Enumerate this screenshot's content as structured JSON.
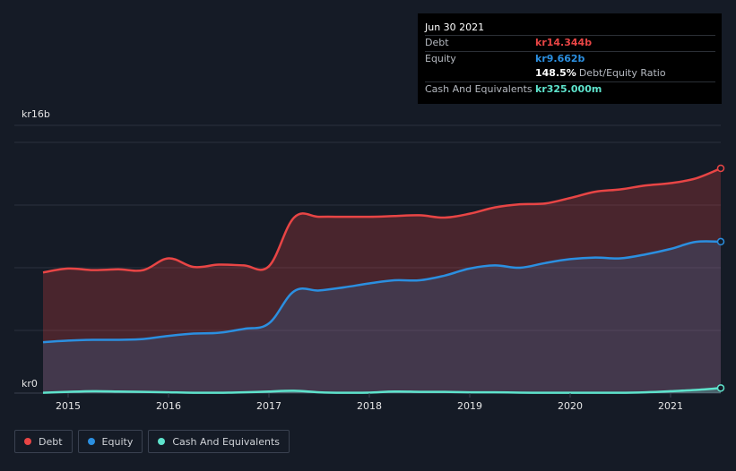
{
  "tooltip": {
    "date": "Jun 30 2021",
    "debt_label": "Debt",
    "debt_value": "kr14.344b",
    "equity_label": "Equity",
    "equity_value": "kr9.662b",
    "ratio_value": "148.5%",
    "ratio_label": "Debt/Equity Ratio",
    "cash_label": "Cash And Equivalents",
    "cash_value": "kr325.000m"
  },
  "legend": [
    {
      "label": "Debt",
      "color": "#e84545"
    },
    {
      "label": "Equity",
      "color": "#2b8fe0"
    },
    {
      "label": "Cash And Equivalents",
      "color": "#5ee3cc"
    }
  ],
  "chart_data": {
    "type": "area",
    "title": "",
    "y_label_top": "kr16b",
    "y_label_bottom": "kr0",
    "ylim": [
      0,
      16
    ],
    "xlim": [
      2014.75,
      2021.5
    ],
    "x_ticks": [
      "2015",
      "2016",
      "2017",
      "2018",
      "2019",
      "2020",
      "2021"
    ],
    "x_tick_values": [
      2015,
      2016,
      2017,
      2018,
      2019,
      2020,
      2021
    ],
    "y_unit": "kr billions",
    "series": [
      {
        "name": "Debt",
        "color": "#e84545",
        "points": [
          [
            2014.75,
            7.7
          ],
          [
            2015.0,
            7.95
          ],
          [
            2015.25,
            7.85
          ],
          [
            2015.5,
            7.9
          ],
          [
            2015.75,
            7.85
          ],
          [
            2016.0,
            8.6
          ],
          [
            2016.25,
            8.05
          ],
          [
            2016.5,
            8.2
          ],
          [
            2016.75,
            8.15
          ],
          [
            2017.0,
            8.1
          ],
          [
            2017.25,
            11.2
          ],
          [
            2017.5,
            11.25
          ],
          [
            2017.75,
            11.25
          ],
          [
            2018.0,
            11.25
          ],
          [
            2018.25,
            11.3
          ],
          [
            2018.5,
            11.35
          ],
          [
            2018.75,
            11.2
          ],
          [
            2019.0,
            11.45
          ],
          [
            2019.25,
            11.85
          ],
          [
            2019.5,
            12.05
          ],
          [
            2019.75,
            12.1
          ],
          [
            2020.0,
            12.45
          ],
          [
            2020.25,
            12.85
          ],
          [
            2020.5,
            13.0
          ],
          [
            2020.75,
            13.25
          ],
          [
            2021.0,
            13.4
          ],
          [
            2021.25,
            13.7
          ],
          [
            2021.5,
            14.344
          ]
        ]
      },
      {
        "name": "Equity",
        "color": "#2b8fe0",
        "points": [
          [
            2014.75,
            3.25
          ],
          [
            2015.0,
            3.35
          ],
          [
            2015.25,
            3.4
          ],
          [
            2015.5,
            3.4
          ],
          [
            2015.75,
            3.45
          ],
          [
            2016.0,
            3.65
          ],
          [
            2016.25,
            3.8
          ],
          [
            2016.5,
            3.85
          ],
          [
            2016.75,
            4.1
          ],
          [
            2017.0,
            4.45
          ],
          [
            2017.25,
            6.5
          ],
          [
            2017.5,
            6.55
          ],
          [
            2017.75,
            6.75
          ],
          [
            2018.0,
            7.0
          ],
          [
            2018.25,
            7.2
          ],
          [
            2018.5,
            7.2
          ],
          [
            2018.75,
            7.5
          ],
          [
            2019.0,
            7.95
          ],
          [
            2019.25,
            8.15
          ],
          [
            2019.5,
            8.0
          ],
          [
            2019.75,
            8.3
          ],
          [
            2020.0,
            8.55
          ],
          [
            2020.25,
            8.65
          ],
          [
            2020.5,
            8.6
          ],
          [
            2020.75,
            8.85
          ],
          [
            2021.0,
            9.2
          ],
          [
            2021.25,
            9.65
          ],
          [
            2021.5,
            9.662
          ]
        ]
      },
      {
        "name": "Cash And Equivalents",
        "color": "#5ee3cc",
        "points": [
          [
            2014.75,
            0.02
          ],
          [
            2015.0,
            0.08
          ],
          [
            2015.25,
            0.12
          ],
          [
            2015.5,
            0.1
          ],
          [
            2015.75,
            0.08
          ],
          [
            2016.0,
            0.05
          ],
          [
            2016.25,
            0.02
          ],
          [
            2016.5,
            0.02
          ],
          [
            2016.75,
            0.05
          ],
          [
            2017.0,
            0.1
          ],
          [
            2017.25,
            0.15
          ],
          [
            2017.5,
            0.05
          ],
          [
            2017.75,
            0.02
          ],
          [
            2018.0,
            0.03
          ],
          [
            2018.25,
            0.1
          ],
          [
            2018.5,
            0.08
          ],
          [
            2018.75,
            0.08
          ],
          [
            2019.0,
            0.05
          ],
          [
            2019.25,
            0.05
          ],
          [
            2019.5,
            0.03
          ],
          [
            2019.75,
            0.02
          ],
          [
            2020.0,
            0.02
          ],
          [
            2020.25,
            0.02
          ],
          [
            2020.5,
            0.02
          ],
          [
            2020.75,
            0.05
          ],
          [
            2021.0,
            0.12
          ],
          [
            2021.25,
            0.2
          ],
          [
            2021.5,
            0.325
          ]
        ]
      }
    ],
    "grid": true,
    "legend_position": "bottom-left"
  }
}
